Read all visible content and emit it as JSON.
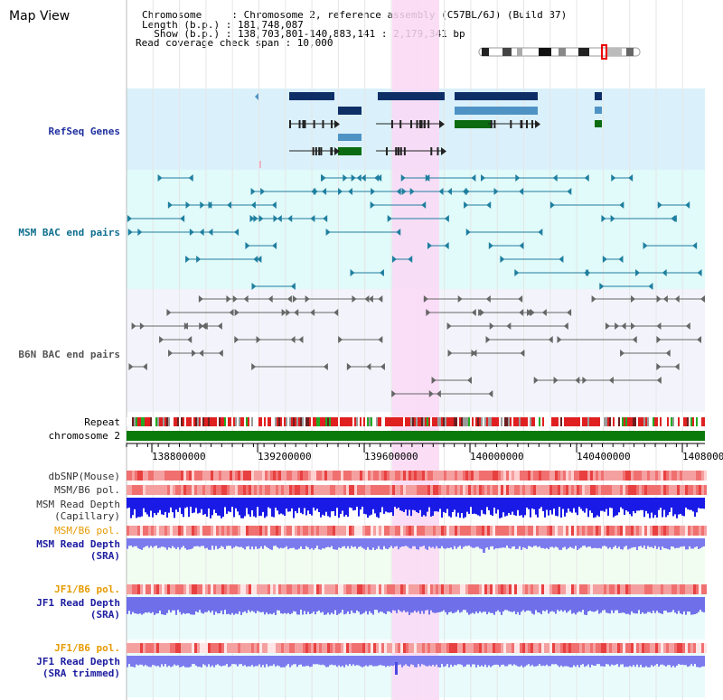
{
  "title": "Map View",
  "header": {
    "chromosome_line": "Chromosome     : Chromosome 2, reference assembly (C57BL/6J) (Build 37)",
    "length_line": "Length (b.p.) : 181,748,087",
    "show_line": "  Show (b.p.) : 138,703,801-140,883,141 : 2,179,341 bp",
    "coverage_line": "Read coverage check span : 10,000"
  },
  "tracks": {
    "refseq": "RefSeq Genes",
    "msm_bac": "MSM BAC end pairs",
    "b6n_bac": "B6N BAC end pairs",
    "repeat": "Repeat",
    "chromosome": "chromosome 2",
    "dbsnp": "dbSNP(Mouse)",
    "msm_b6_pol": "MSM/B6 pol.",
    "msm_depth_cap_1": "MSM Read Depth",
    "msm_depth_cap_2": "(Capillary)",
    "msm_b6_pol_2": "MSM/B6 pol.",
    "msm_depth_sra_1": "MSM Read Depth",
    "msm_depth_sra_2": "(SRA)",
    "jf1_b6_pol": "JF1/B6 pol.",
    "jf1_depth_sra_1": "JF1 Read Depth",
    "jf1_depth_sra_2": "(SRA)",
    "jf1_b6_pol_2": "JF1/B6 pol.",
    "jf1_depth_trim_1": "JF1 Read Depth",
    "jf1_depth_trim_2": "(SRA trimmed)"
  },
  "axis": {
    "ticks": [
      "138800000",
      "139200000",
      "139600000",
      "140000000",
      "140400000",
      "1408000"
    ]
  },
  "colors": {
    "refseq_bg": "#daf1fb",
    "msm_bg": "#e1fafa",
    "b6n_bg": "#f3f4fb",
    "highlight": "#fad8f4",
    "refseq_label": "#1f2f9f",
    "msm_label": "#0f6f8f",
    "b6n_label": "#555555",
    "orange_label": "#e69a00",
    "blue_label": "#1c1ca0"
  }
}
